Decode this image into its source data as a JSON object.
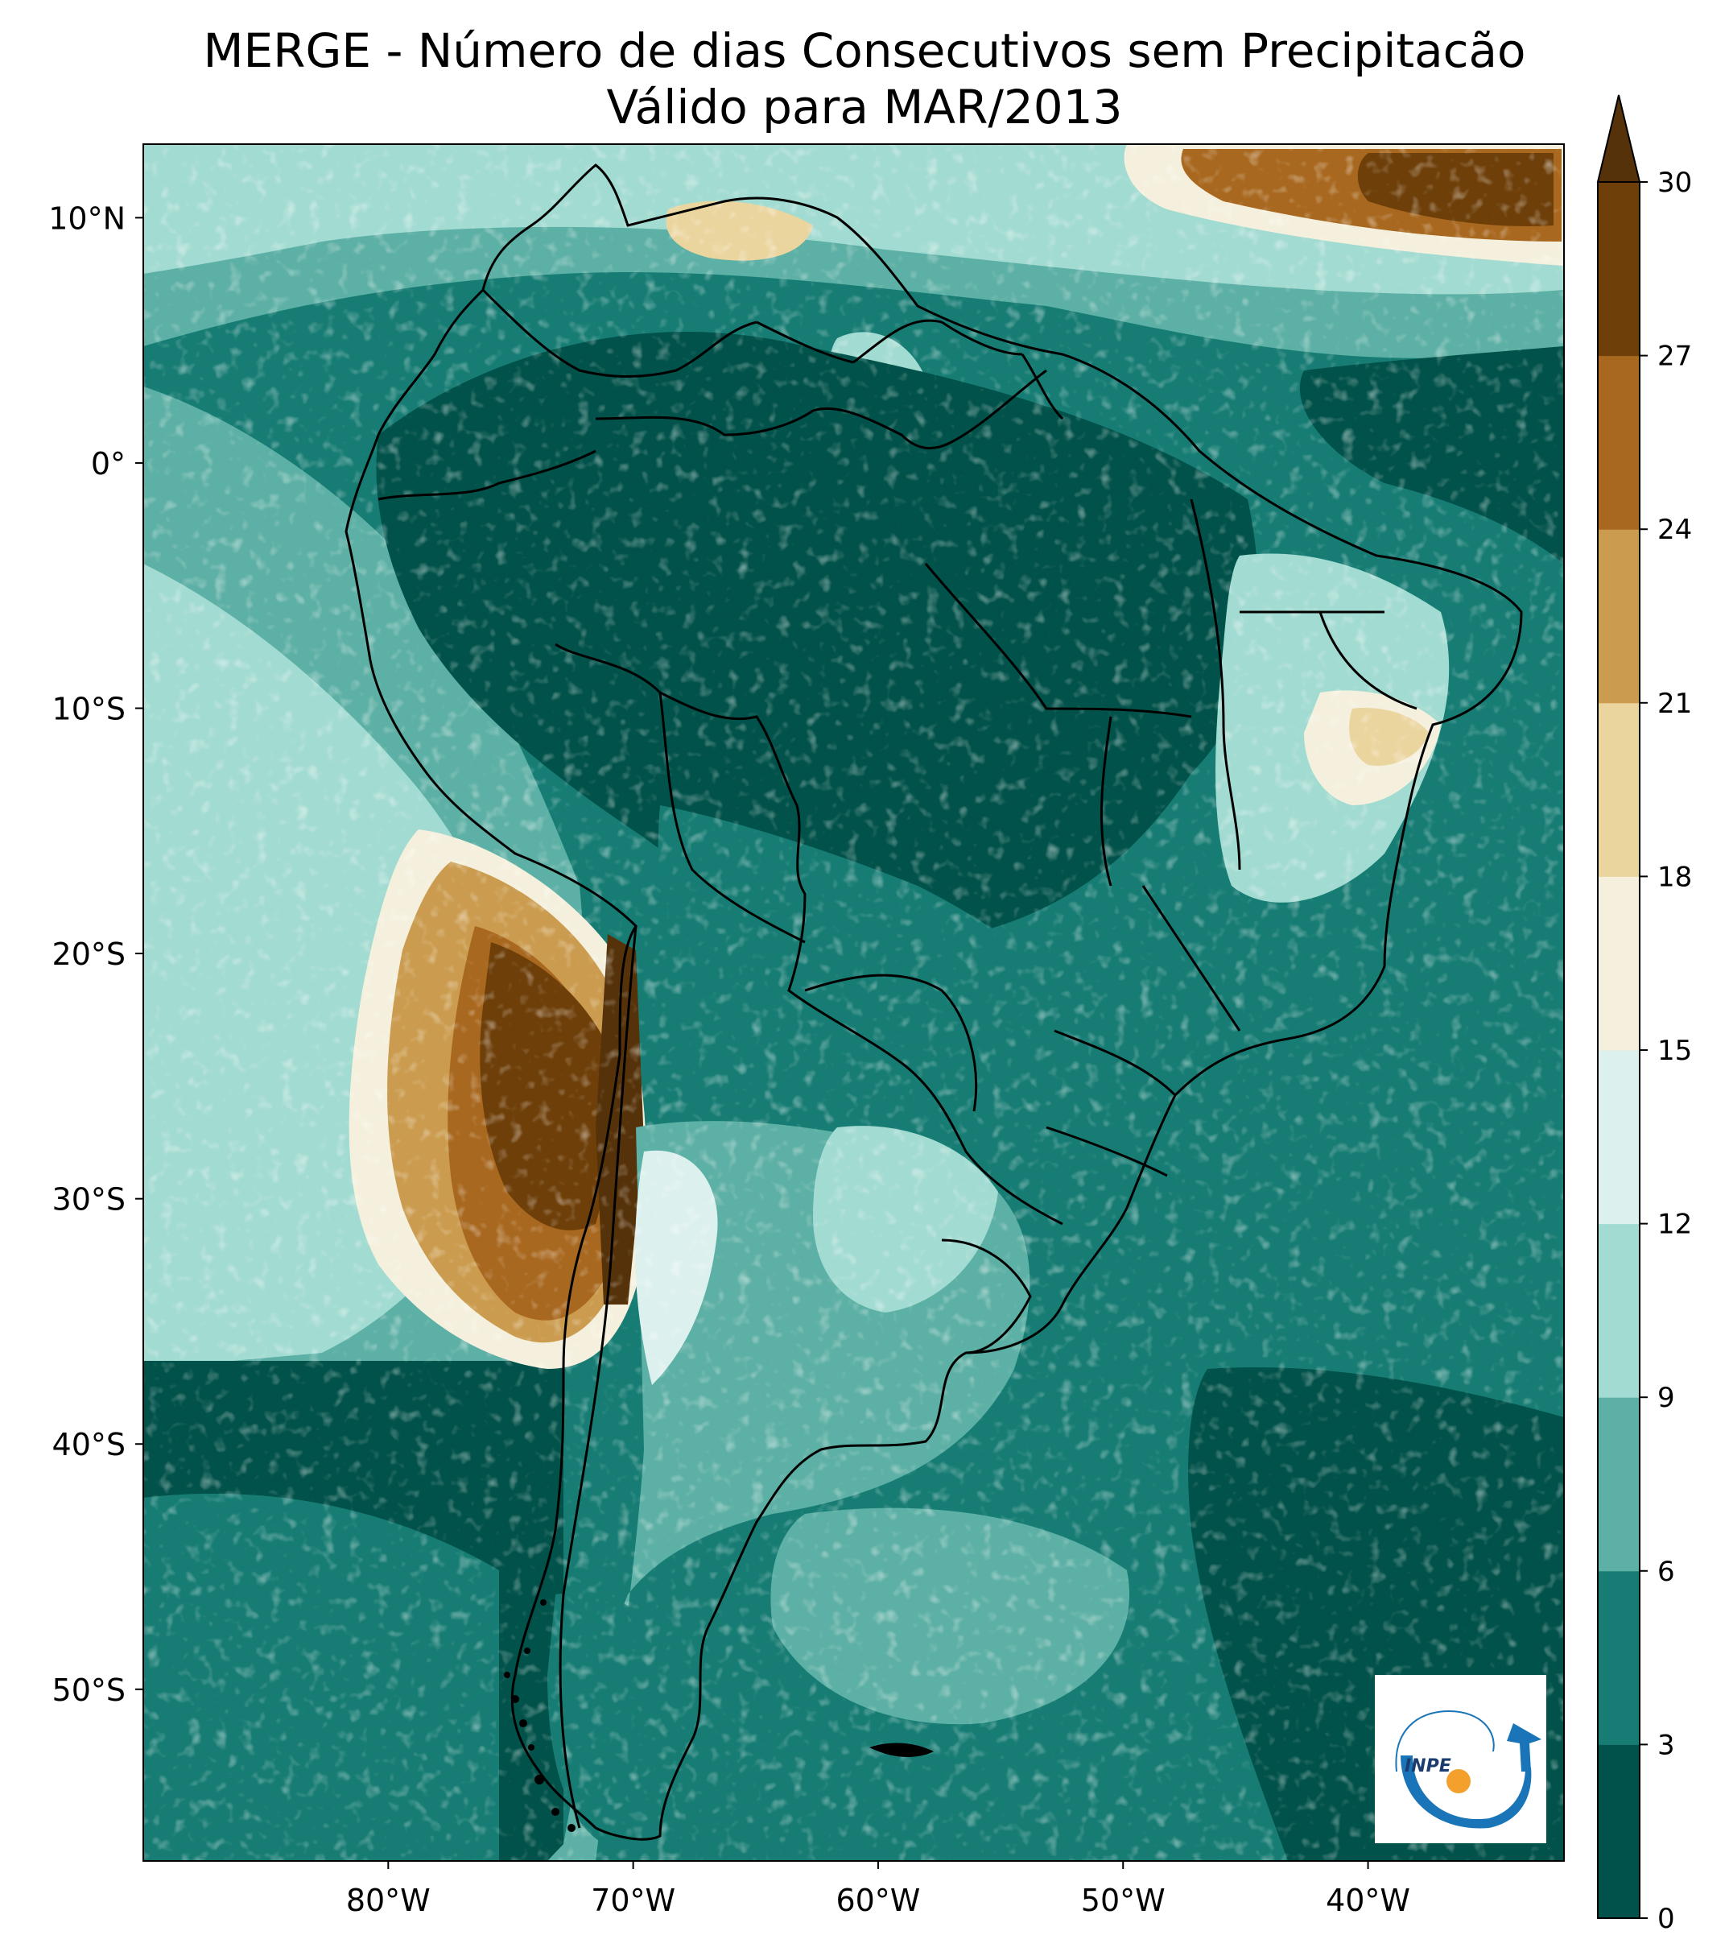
{
  "title": {
    "line1": "MERGE - Número de dias Consecutivos sem Precipitacão",
    "line2": "Válido para MAR/2013"
  },
  "map": {
    "lon_range": [
      -90,
      -32
    ],
    "lat_range": [
      -57,
      13
    ],
    "lat_ticks": [
      {
        "value": 10,
        "label": "10°N"
      },
      {
        "value": 0,
        "label": "0°"
      },
      {
        "value": -10,
        "label": "10°S"
      },
      {
        "value": -20,
        "label": "20°S"
      },
      {
        "value": -30,
        "label": "30°S"
      },
      {
        "value": -40,
        "label": "40°S"
      },
      {
        "value": -50,
        "label": "50°S"
      }
    ],
    "lon_ticks": [
      {
        "value": -80,
        "label": "80°W"
      },
      {
        "value": -70,
        "label": "70°W"
      },
      {
        "value": -60,
        "label": "60°W"
      },
      {
        "value": -50,
        "label": "50°W"
      },
      {
        "value": -40,
        "label": "40°W"
      }
    ]
  },
  "colorbar": {
    "levels": [
      0,
      3,
      6,
      9,
      12,
      15,
      18,
      21,
      24,
      27,
      30
    ],
    "tick_labels": [
      "0",
      "3",
      "6",
      "9",
      "12",
      "15",
      "18",
      "21",
      "24",
      "27",
      "30"
    ],
    "colors": [
      "#01524a",
      "#177d74",
      "#5db0a5",
      "#a2dbd1",
      "#dcf0ee",
      "#f5f0dd",
      "#ebd59e",
      "#cb9c4f",
      "#a8681f",
      "#6e3f09"
    ],
    "extend_color": "#553209"
  },
  "logo": {
    "text": "INPE"
  }
}
